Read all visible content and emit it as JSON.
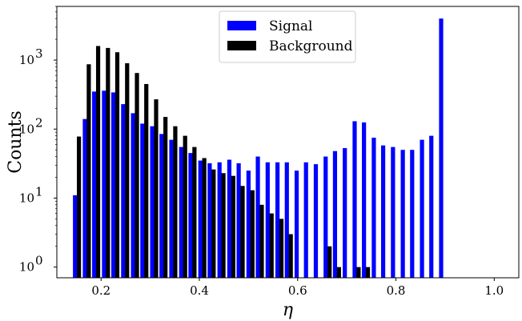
{
  "chart_data": {
    "type": "bar",
    "xlabel": "η",
    "ylabel": "Counts",
    "xlim": [
      0.11,
      1.05
    ],
    "ylim": [
      0.7,
      6000
    ],
    "yscale": "log",
    "xticks": [
      "0.2",
      "0.4",
      "0.6",
      "0.8",
      "1.0"
    ],
    "xtick_values": [
      0.2,
      0.4,
      0.6,
      0.8,
      1.0
    ],
    "yticks": [
      {
        "value": 1,
        "base": "10",
        "exp": "0"
      },
      {
        "value": 10,
        "base": "10",
        "exp": "1"
      },
      {
        "value": 100,
        "base": "10",
        "exp": "2"
      },
      {
        "value": 1000,
        "base": "10",
        "exp": "3"
      }
    ],
    "legend_position": "top-center",
    "series": [
      {
        "name": "Signal",
        "color": "#0000ff",
        "x": [
          0.147,
          0.167,
          0.186,
          0.206,
          0.225,
          0.245,
          0.265,
          0.284,
          0.304,
          0.323,
          0.343,
          0.363,
          0.382,
          0.402,
          0.421,
          0.441,
          0.461,
          0.48,
          0.5,
          0.519,
          0.539,
          0.559,
          0.578,
          0.598,
          0.617,
          0.637,
          0.657,
          0.676,
          0.696,
          0.716,
          0.735,
          0.755,
          0.774,
          0.794,
          0.814,
          0.833,
          0.853,
          0.872,
          0.892,
          0.912,
          0.931,
          0.951,
          0.97,
          0.99
        ],
        "values": [
          11,
          140,
          350,
          360,
          340,
          230,
          170,
          120,
          110,
          85,
          70,
          55,
          45,
          35,
          32,
          33,
          36,
          32,
          25,
          40,
          33,
          33,
          33,
          25,
          33,
          31,
          40,
          48,
          53,
          130,
          125,
          75,
          58,
          55,
          50,
          50,
          70,
          80,
          4000,
          0,
          0,
          0,
          0,
          0
        ]
      },
      {
        "name": "Background",
        "color": "#000000",
        "x": [
          0.155,
          0.175,
          0.194,
          0.214,
          0.233,
          0.253,
          0.273,
          0.292,
          0.312,
          0.331,
          0.351,
          0.371,
          0.39,
          0.41,
          0.429,
          0.449,
          0.469,
          0.488,
          0.508,
          0.527,
          0.547,
          0.567,
          0.586,
          0.606,
          0.625,
          0.645,
          0.665,
          0.684,
          0.704,
          0.724,
          0.743,
          0.763,
          0.782,
          0.802,
          0.822
        ],
        "values": [
          78,
          870,
          1600,
          1500,
          1300,
          900,
          650,
          450,
          270,
          150,
          110,
          80,
          55,
          38,
          26,
          23,
          21,
          15,
          13,
          8,
          6,
          5,
          3,
          0,
          0,
          0,
          2,
          1,
          0,
          1,
          1,
          0,
          0,
          0,
          0
        ]
      }
    ]
  }
}
